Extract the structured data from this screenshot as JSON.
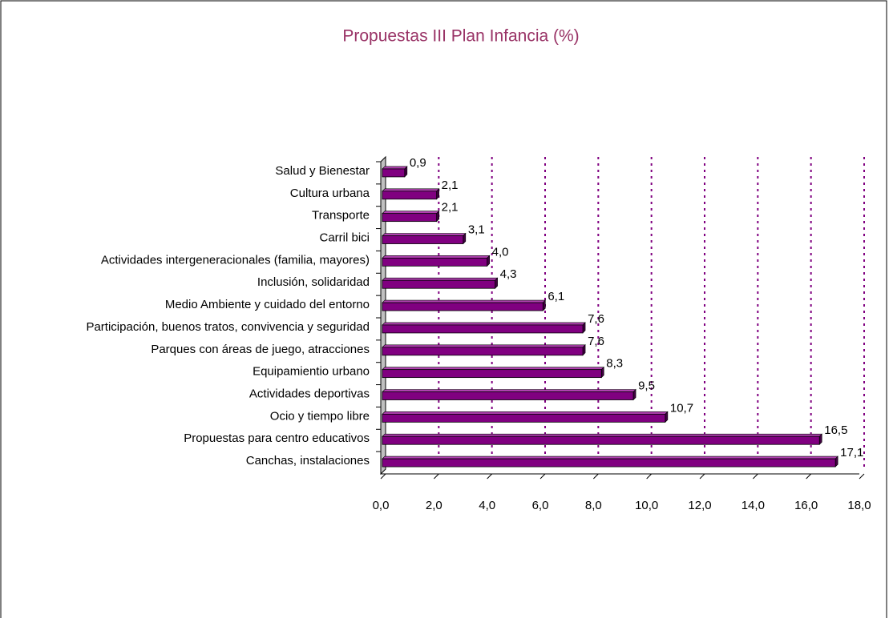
{
  "chart_data": {
    "type": "bar",
    "orientation": "horizontal",
    "title": "Propuestas III Plan Infancia (%)",
    "categories": [
      "Salud y Bienestar",
      "Cultura urbana",
      "Transporte",
      "Carril bici",
      "Actividades intergeneracionales (familia, mayores)",
      "Inclusión, solidaridad",
      "Medio Ambiente y cuidado del entorno",
      "Participación, buenos tratos, convivencia y seguridad",
      "Parques con áreas de juego, atracciones",
      "Equipamientio urbano",
      "Actividades deportivas",
      "Ocio y tiempo libre",
      "Propuestas para centro educativos",
      "Canchas, instalaciones"
    ],
    "values": [
      0.9,
      2.1,
      2.1,
      3.1,
      4.0,
      4.3,
      6.1,
      7.6,
      7.6,
      8.3,
      9.5,
      10.7,
      16.5,
      17.1
    ],
    "value_labels": [
      "0,9",
      "2,1",
      "2,1",
      "3,1",
      "4,0",
      "4,3",
      "6,1",
      "7,6",
      "7,6",
      "8,3",
      "9,5",
      "10,7",
      "16,5",
      "17,1"
    ],
    "color": "#800080",
    "xlim": [
      0,
      18
    ],
    "xticks": [
      {
        "value": 0,
        "label": "0,0"
      },
      {
        "value": 2,
        "label": "2,0"
      },
      {
        "value": 4,
        "label": "4,0"
      },
      {
        "value": 6,
        "label": "6,0"
      },
      {
        "value": 8,
        "label": "8,0"
      },
      {
        "value": 10,
        "label": "10,0"
      },
      {
        "value": 12,
        "label": "12,0"
      },
      {
        "value": 14,
        "label": "14,0"
      },
      {
        "value": 16,
        "label": "16,0"
      },
      {
        "value": 18,
        "label": "18,0"
      }
    ],
    "grid": true
  }
}
